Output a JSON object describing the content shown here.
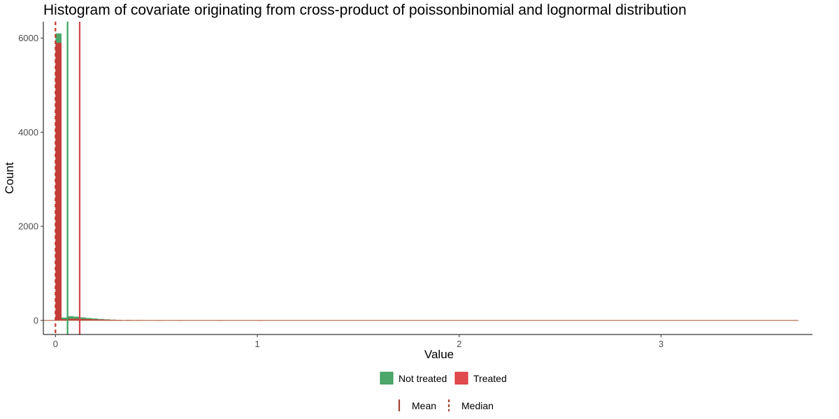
{
  "chart_data": {
    "type": "bar",
    "title": "Histogram of covariate originating from cross-product of poissonbinomial and lognormal distribution",
    "xlabel": "Value",
    "ylabel": "Count",
    "xlim": [
      -0.06,
      3.75
    ],
    "ylim": [
      -300,
      6350
    ],
    "x_ticks": [
      0,
      1,
      2,
      3
    ],
    "x_tick_labels": [
      "0",
      "1",
      "2",
      "3"
    ],
    "y_ticks": [
      0,
      2000,
      4000,
      6000
    ],
    "y_tick_labels": [
      "0",
      "2000",
      "4000",
      "6000"
    ],
    "grid": false,
    "legend_position": "bottom",
    "colors": {
      "not_treated": "#2e9650",
      "treated": "#d92a2f",
      "not_treated_line": "#3aa35f",
      "treated_line": "#d24a4e",
      "median_line": "#c0392b",
      "legend_line": "#a0412f",
      "outline": "#b06040"
    },
    "series": [
      {
        "name": "Not treated",
        "bins": [
          [
            0.0,
            6100
          ],
          [
            0.03,
            60
          ],
          [
            0.06,
            90
          ],
          [
            0.09,
            80
          ],
          [
            0.12,
            65
          ],
          [
            0.15,
            50
          ],
          [
            0.18,
            40
          ],
          [
            0.21,
            30
          ],
          [
            0.24,
            22
          ],
          [
            0.27,
            16
          ],
          [
            0.3,
            11
          ],
          [
            0.35,
            7
          ],
          [
            0.4,
            5
          ],
          [
            0.5,
            3
          ],
          [
            0.6,
            2
          ],
          [
            0.8,
            1
          ]
        ],
        "mean": 0.06,
        "median": 0.0
      },
      {
        "name": "Treated",
        "bins": [
          [
            0.0,
            5900
          ],
          [
            0.03,
            25
          ],
          [
            0.06,
            35
          ],
          [
            0.09,
            35
          ],
          [
            0.12,
            30
          ],
          [
            0.15,
            26
          ],
          [
            0.18,
            22
          ],
          [
            0.21,
            18
          ],
          [
            0.24,
            15
          ],
          [
            0.27,
            12
          ],
          [
            0.3,
            10
          ],
          [
            0.35,
            8
          ],
          [
            0.4,
            6
          ],
          [
            0.5,
            4
          ],
          [
            0.6,
            3
          ],
          [
            0.8,
            2
          ],
          [
            1.0,
            1
          ]
        ],
        "mean": 0.12,
        "median": 0.0
      }
    ],
    "x_range_end": 3.75,
    "legend_fill": [
      {
        "key": "not_treated",
        "label": "Not treated"
      },
      {
        "key": "treated",
        "label": "Treated"
      }
    ],
    "legend_line": [
      {
        "key": "mean",
        "label": "Mean"
      },
      {
        "key": "median",
        "label": "Median"
      }
    ]
  }
}
